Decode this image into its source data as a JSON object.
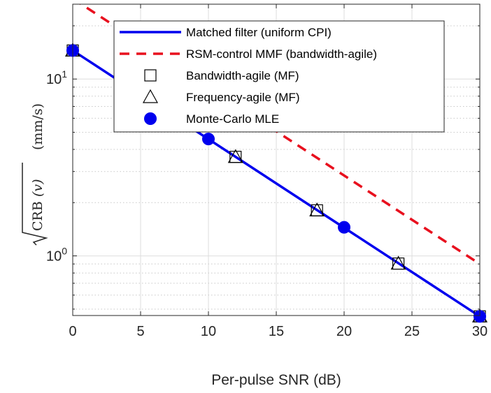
{
  "chart_data": {
    "type": "line",
    "xlabel": "Per-pulse SNR (dB)",
    "ylabel": {
      "root_arg": "CRB",
      "var": "(v)",
      "unit": "(mm/s)"
    },
    "xlim": [
      0,
      30
    ],
    "ylim": [
      0.46,
      26.5
    ],
    "yscale": "log",
    "grid": true,
    "legend_position": "top-right",
    "x_ticks": [
      {
        "value": 0,
        "label": "0"
      },
      {
        "value": 5,
        "label": "5"
      },
      {
        "value": 10,
        "label": "10"
      },
      {
        "value": 15,
        "label": "15"
      },
      {
        "value": 20,
        "label": "20"
      },
      {
        "value": 25,
        "label": "25"
      },
      {
        "value": 30,
        "label": "30"
      }
    ],
    "y_ticks": [
      {
        "value": 1,
        "base": "10",
        "exp": "0"
      },
      {
        "value": 10,
        "base": "10",
        "exp": "1"
      }
    ],
    "series": [
      {
        "name": "Matched filter (uniform CPI)",
        "style": "line-solid",
        "color": "#0000ee",
        "x": [
          0,
          30
        ],
        "y": [
          14.5,
          0.455
        ]
      },
      {
        "name": "RSM-control MMF (bandwidth-agile)",
        "style": "line-dashed",
        "color": "#e8101e",
        "x": [
          0,
          30
        ],
        "y": [
          28.5,
          0.9
        ]
      },
      {
        "name": "Bandwidth-agile (MF)",
        "style": "square",
        "color": "#000000",
        "x": [
          0,
          12,
          18,
          24,
          30
        ],
        "y": [
          14.5,
          3.63,
          1.81,
          0.905,
          0.455
        ]
      },
      {
        "name": "Frequency-agile (MF)",
        "style": "triangle",
        "color": "#000000",
        "x": [
          0,
          12,
          18,
          24,
          30
        ],
        "y": [
          14.5,
          3.63,
          1.81,
          0.905,
          0.455
        ]
      },
      {
        "name": "Monte-Carlo MLE",
        "style": "dot",
        "color": "#0000ee",
        "x": [
          0,
          10,
          20,
          30
        ],
        "y": [
          14.5,
          4.58,
          1.45,
          0.455
        ]
      }
    ]
  }
}
